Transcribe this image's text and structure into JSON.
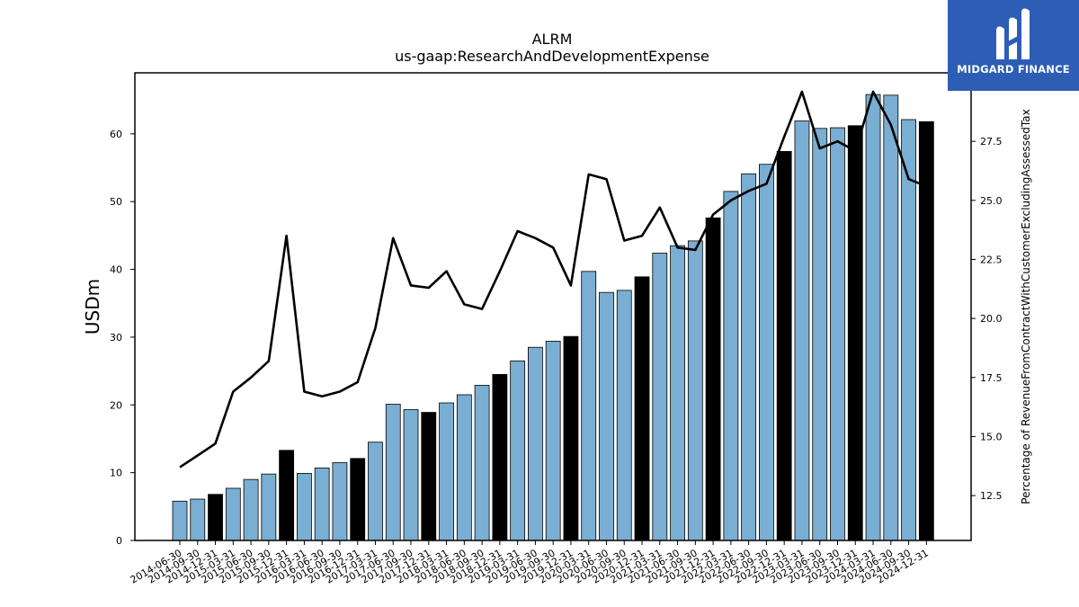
{
  "brand": {
    "name": "MIDGARD FINANCE",
    "logo_icon": "midgard-finance-logo-icon",
    "bg_color": "#2d5db5"
  },
  "chart_data": {
    "type": "bar",
    "title": "ALRM",
    "subtitle": "us-gaap:ResearchAndDevelopmentExpense",
    "ylabel": "USDm",
    "y2label": "Percentage of RevenueFromContractWithCustomerExcludingAssessedTax",
    "ylim": [
      0,
      69
    ],
    "y2lim": [
      10.6,
      30.4
    ],
    "yticks": [
      0,
      10,
      20,
      30,
      40,
      50,
      60
    ],
    "y2ticks": [
      "12.5",
      "15.0",
      "17.5",
      "20.0",
      "22.5",
      "25.0",
      "27.5"
    ],
    "colors": {
      "bar": "#7aaed2",
      "bar_q4": "#000000",
      "line": "#000000"
    },
    "categories": [
      "2014-06-30",
      "2014-09-30",
      "2014-12-31",
      "2015-03-31",
      "2015-06-30",
      "2015-09-30",
      "2015-12-31",
      "2016-03-31",
      "2016-06-30",
      "2016-09-30",
      "2016-12-31",
      "2017-03-31",
      "2017-06-30",
      "2017-09-30",
      "2017-12-31",
      "2018-03-31",
      "2018-06-30",
      "2018-09-30",
      "2018-12-31",
      "2019-03-31",
      "2019-06-30",
      "2019-09-30",
      "2019-12-31",
      "2020-03-31",
      "2020-06-30",
      "2020-09-30",
      "2020-12-31",
      "2021-03-31",
      "2021-06-30",
      "2021-09-30",
      "2021-12-31",
      "2022-03-31",
      "2022-06-30",
      "2022-09-30",
      "2022-12-31",
      "2023-03-31",
      "2023-06-30",
      "2023-09-30",
      "2023-12-31",
      "2024-03-31",
      "2024-06-30",
      "2024-09-30",
      "2024-12-31"
    ],
    "series": [
      {
        "type": "bar",
        "values": [
          5.8,
          6.1,
          6.8,
          7.7,
          9.0,
          9.8,
          13.3,
          9.9,
          10.7,
          11.5,
          12.1,
          14.5,
          20.1,
          19.3,
          18.9,
          20.3,
          21.5,
          22.9,
          24.5,
          26.5,
          28.5,
          29.4,
          30.1,
          39.7,
          36.6,
          36.9,
          38.9,
          42.4,
          43.5,
          44.2,
          47.6,
          51.5,
          54.1,
          55.5,
          57.4,
          61.9,
          60.8,
          60.9,
          61.2,
          65.8,
          65.7,
          62.1,
          61.8
        ],
        "highlight": [
          false,
          false,
          true,
          false,
          false,
          false,
          true,
          false,
          false,
          false,
          true,
          false,
          false,
          false,
          true,
          false,
          false,
          false,
          true,
          false,
          false,
          false,
          true,
          false,
          false,
          false,
          true,
          false,
          false,
          false,
          true,
          false,
          false,
          false,
          true,
          false,
          false,
          false,
          true,
          false,
          false,
          false,
          true
        ]
      },
      {
        "type": "line",
        "axis": "right",
        "values": [
          13.7,
          14.2,
          14.7,
          16.9,
          17.5,
          18.2,
          23.5,
          16.9,
          16.7,
          16.9,
          17.3,
          19.6,
          23.4,
          21.4,
          21.3,
          22.0,
          20.6,
          20.4,
          22.0,
          23.7,
          23.4,
          23.0,
          21.4,
          26.1,
          25.9,
          23.3,
          23.5,
          24.7,
          23.0,
          22.9,
          24.4,
          25.0,
          25.4,
          25.7,
          27.7,
          29.6,
          27.2,
          27.5,
          27.1,
          29.6,
          28.2,
          25.9,
          25.6
        ]
      }
    ]
  }
}
